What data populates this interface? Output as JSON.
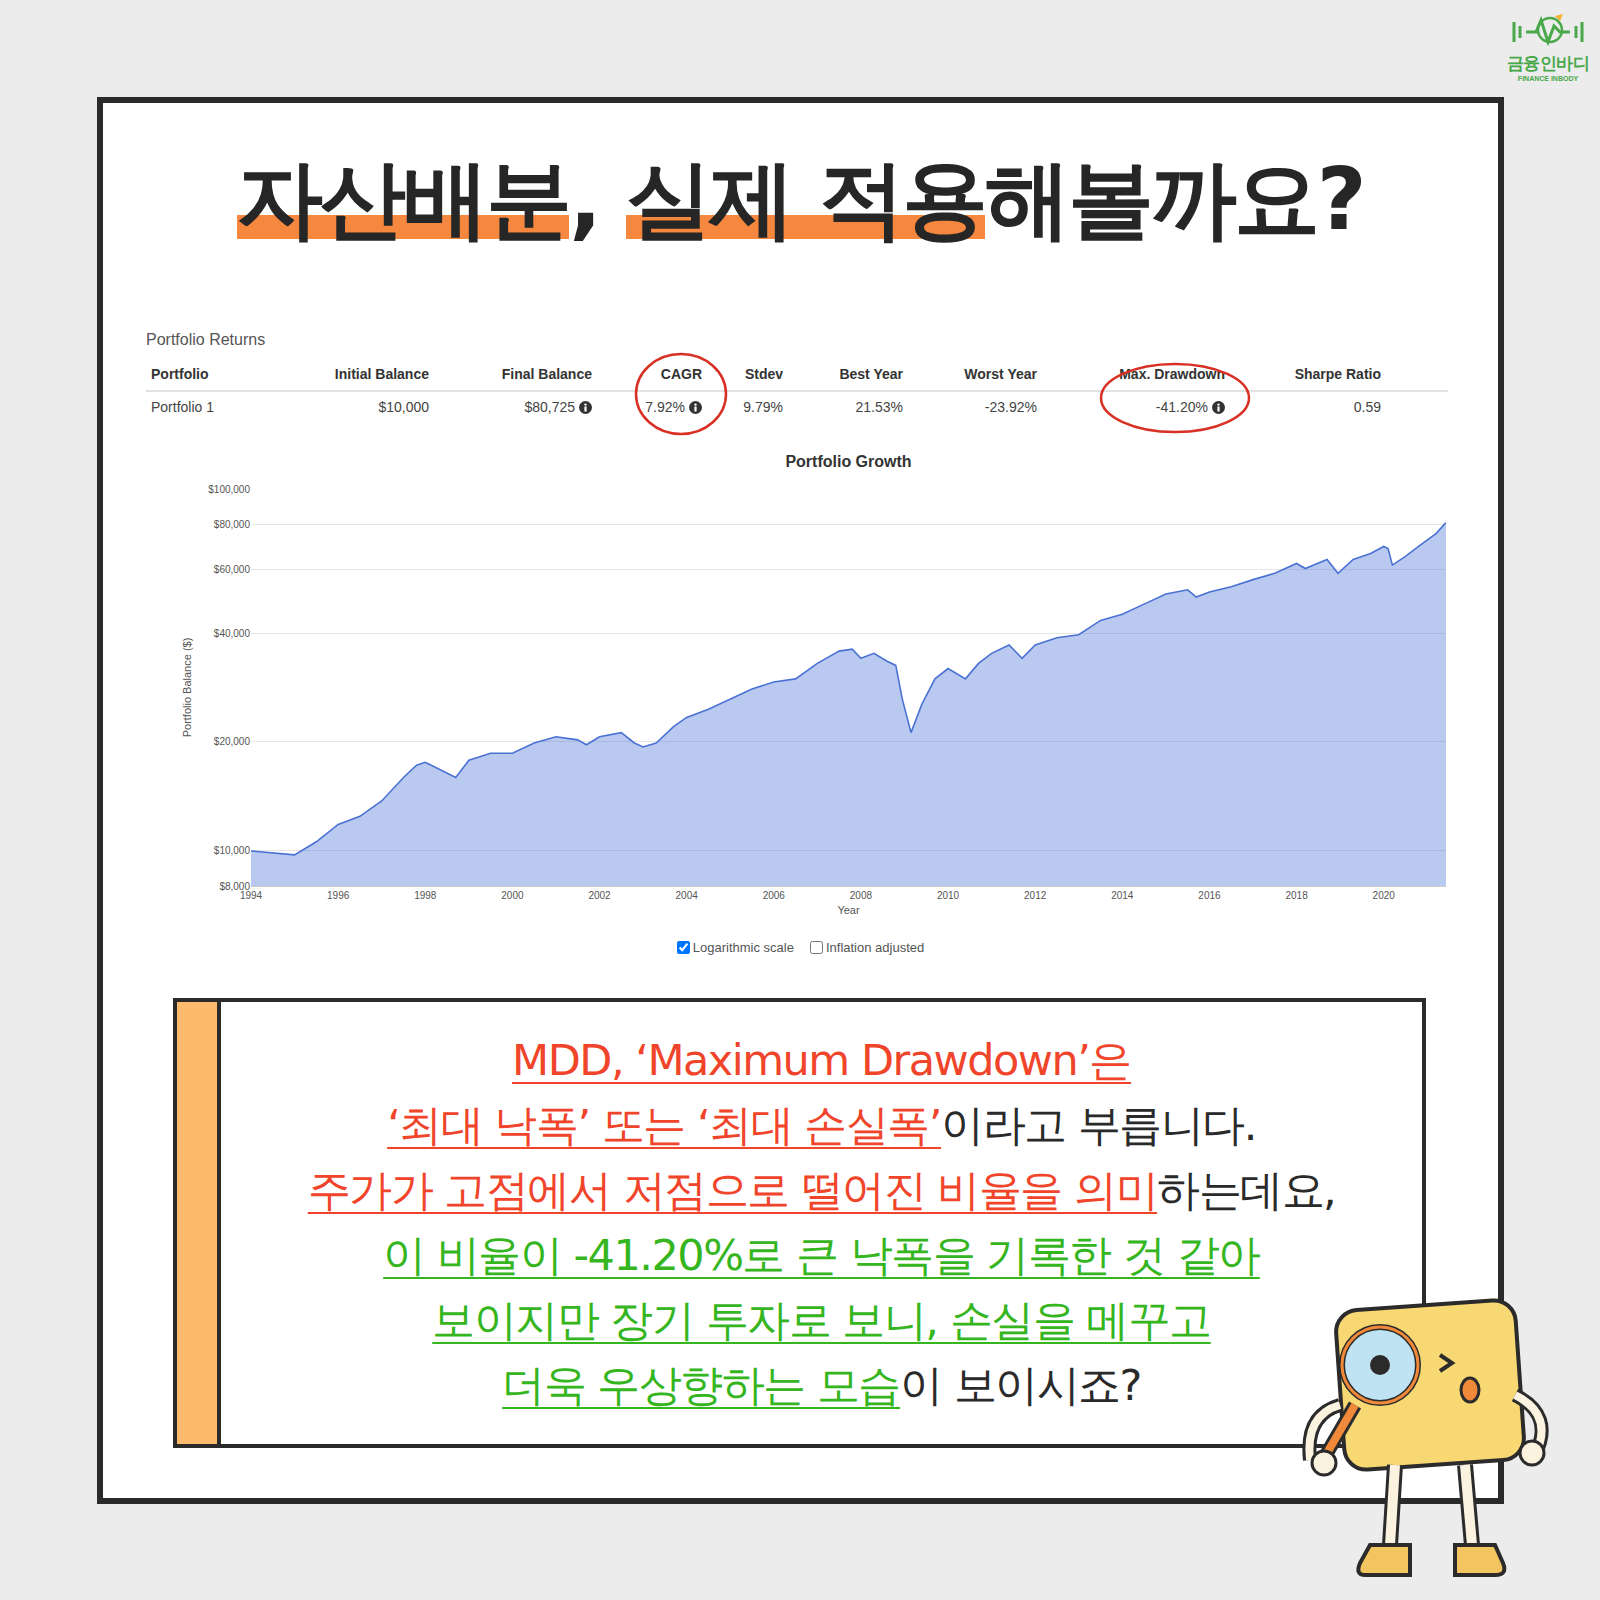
{
  "logo": {
    "name": "금융인바디",
    "subtitle": "FINANCE INBODY"
  },
  "header": {
    "title_segments": [
      {
        "text": "자산배분",
        "highlight": true
      },
      {
        "text": ", ",
        "highlight": false
      },
      {
        "text": "실제 적용",
        "highlight": true
      },
      {
        "text": "해볼까요?",
        "highlight": false
      }
    ]
  },
  "table": {
    "caption": "Portfolio Returns",
    "columns": [
      "Portfolio",
      "Initial Balance",
      "Final Balance",
      "CAGR",
      "Stdev",
      "Best Year",
      "Worst Year",
      "Max. Drawdown",
      "Sharpe Ratio"
    ],
    "rows": [
      [
        "Portfolio 1",
        "$10,000",
        "$80,725",
        "7.92%",
        "9.79%",
        "21.53%",
        "-23.92%",
        "-41.20%",
        "0.59"
      ]
    ]
  },
  "chart_data": {
    "type": "area",
    "title": "Portfolio Growth",
    "x_label": "Year",
    "y_label": "Portfolio Balance ($)",
    "x": [
      1994.0,
      1994.2,
      1994.5,
      1995.0,
      1995.5,
      1996.0,
      1996.5,
      1997.0,
      1997.5,
      1997.8,
      1998.0,
      1998.7,
      1999.0,
      1999.5,
      2000.0,
      2000.5,
      2001.0,
      2001.5,
      2001.7,
      2002.0,
      2002.5,
      2002.8,
      2003.0,
      2003.3,
      2003.7,
      2004.0,
      2004.5,
      2005.0,
      2005.5,
      2006.0,
      2006.5,
      2007.0,
      2007.5,
      2007.8,
      2008.0,
      2008.3,
      2008.6,
      2008.8,
      2008.95,
      2009.15,
      2009.4,
      2009.7,
      2010.0,
      2010.4,
      2010.7,
      2011.0,
      2011.4,
      2011.7,
      2012.0,
      2012.5,
      2013.0,
      2013.5,
      2014.0,
      2014.5,
      2015.0,
      2015.5,
      2015.7,
      2016.0,
      2016.5,
      2017.0,
      2017.5,
      2018.0,
      2018.2,
      2018.7,
      2018.95,
      2019.3,
      2019.7,
      2020.0,
      2020.1,
      2020.2,
      2020.5,
      2020.8,
      2021.0,
      2021.2,
      2021.43
    ],
    "series": [
      {
        "color": "#4a72d4",
        "values": [
          10000,
          9950,
          9870,
          9750,
          10600,
          11840,
          12460,
          13740,
          15950,
          17250,
          17580,
          15950,
          17800,
          18620,
          18620,
          19870,
          20680,
          20270,
          19650,
          20680,
          21230,
          19870,
          19380,
          19870,
          22050,
          23380,
          24620,
          26270,
          28020,
          29300,
          29880,
          32980,
          35650,
          36100,
          34060,
          35150,
          33430,
          32550,
          26270,
          21230,
          25450,
          29880,
          31900,
          29880,
          32980,
          35150,
          37060,
          34060,
          37060,
          38800,
          39580,
          43340,
          45080,
          48080,
          51280,
          52670,
          50290,
          51960,
          53710,
          56180,
          58490,
          62270,
          60300,
          63900,
          58490,
          63900,
          66370,
          69380,
          68500,
          61630,
          65100,
          69380,
          72490,
          75310,
          80725
        ]
      }
    ],
    "xlim": [
      1994,
      2021.43
    ],
    "xticks": [
      1994,
      1996,
      1998,
      2000,
      2002,
      2004,
      2006,
      2008,
      2010,
      2012,
      2014,
      2016,
      2018,
      2020
    ],
    "ylim": [
      8000,
      100000
    ],
    "yticks": [
      {
        "value": 8000,
        "label": "$8,000"
      },
      {
        "value": 10000,
        "label": "$10,000"
      },
      {
        "value": 20000,
        "label": "$20,000"
      },
      {
        "value": 40000,
        "label": "$40,000"
      },
      {
        "value": 60000,
        "label": "$60,000"
      },
      {
        "value": 80000,
        "label": "$80,000"
      },
      {
        "value": 100000,
        "label": "$100,000"
      }
    ],
    "log": "y",
    "grid": true
  },
  "chart_options": [
    {
      "label": "Logarithmic scale",
      "checked": true
    },
    {
      "label": "Inflation adjusted",
      "checked": false
    }
  ],
  "note": {
    "lines": [
      [
        {
          "text": "MDD, ‘Maximum Drawdown’은",
          "style": "red"
        }
      ],
      [
        {
          "text": "‘최대 낙폭’ 또는 ‘최대 손실폭’",
          "style": "red"
        },
        {
          "text": "이라고 부릅니다.",
          "style": "plain"
        }
      ],
      [
        {
          "text": "주가가 고점에서 저점으로 떨어진 비율을 의미",
          "style": "red"
        },
        {
          "text": "하는데요,",
          "style": "plain"
        }
      ],
      [
        {
          "text": "이 비율이 -41.20%로 큰 낙폭을 기록한 것 같아",
          "style": "green"
        }
      ],
      [
        {
          "text": "보이지만 장기 투자로 보니, 손실을 메꾸고",
          "style": "green"
        }
      ],
      [
        {
          "text": "더욱 우상향하는 모습",
          "style": "green"
        },
        {
          "text": "이 보이시죠?",
          "style": "plain"
        }
      ]
    ]
  }
}
